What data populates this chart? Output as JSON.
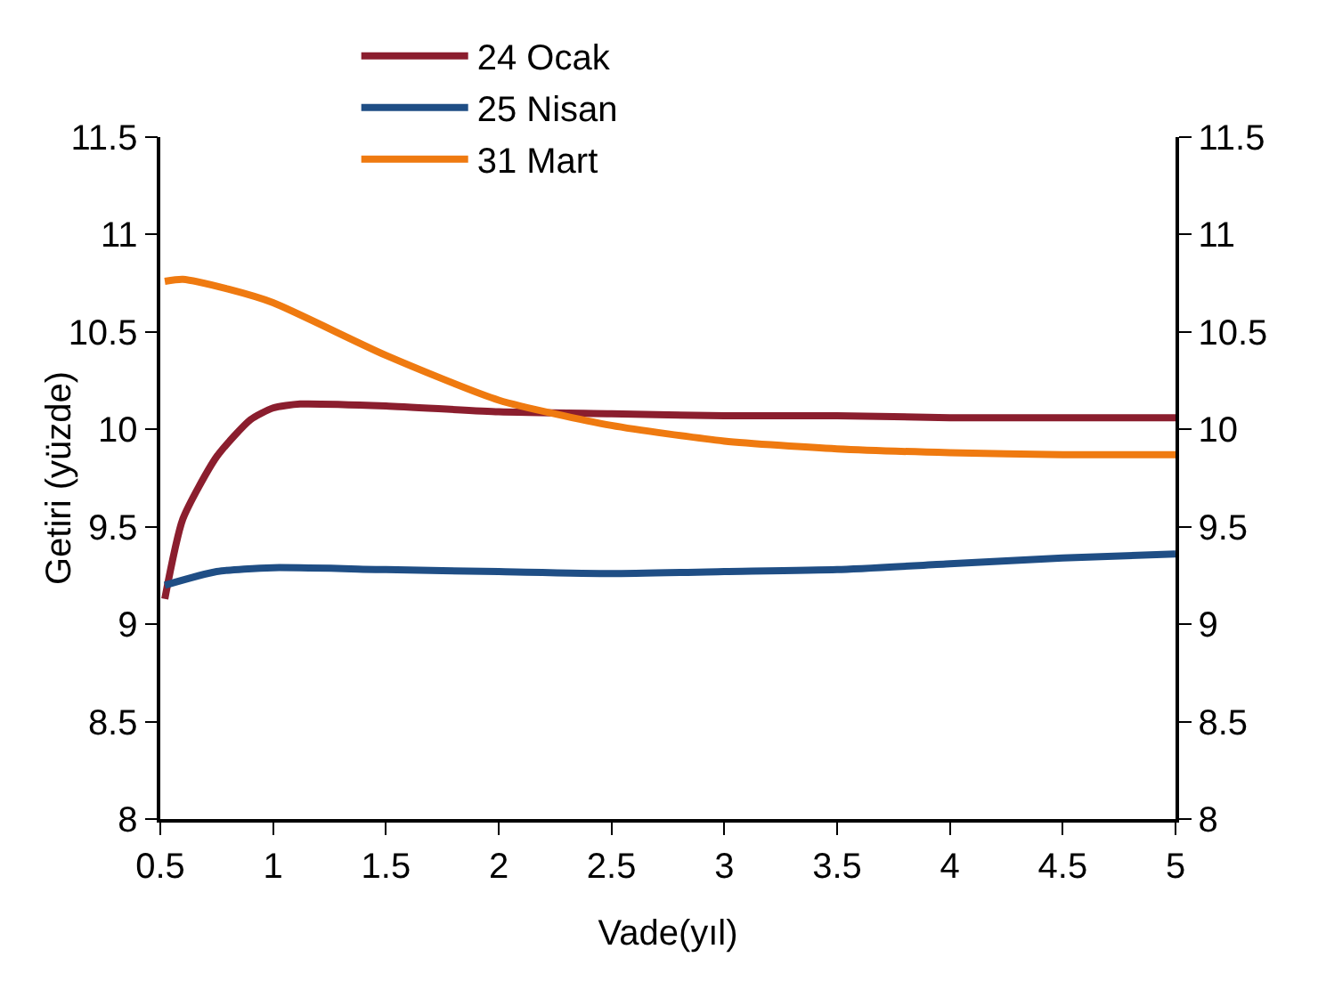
{
  "chart_data": {
    "type": "line",
    "xlabel": "Vade(yıl)",
    "ylabel": "Getiri (yüzde)",
    "series": [
      {
        "name": "24 Ocak",
        "color": "#8b1e2e",
        "x": [
          0.52,
          0.6,
          0.75,
          0.9,
          1,
          1.12,
          1.5,
          2,
          2.5,
          3,
          3.5,
          4,
          4.5,
          5
        ],
        "values": [
          9.13,
          9.54,
          9.86,
          10.05,
          10.11,
          10.13,
          10.12,
          10.09,
          10.08,
          10.07,
          10.07,
          10.06,
          10.06,
          10.06
        ]
      },
      {
        "name": "25 Nisan",
        "color": "#1f4e85",
        "x": [
          0.52,
          0.75,
          1,
          1.5,
          2,
          2.5,
          3,
          3.5,
          4,
          4.5,
          5
        ],
        "values": [
          9.2,
          9.27,
          9.29,
          9.28,
          9.27,
          9.26,
          9.27,
          9.28,
          9.31,
          9.34,
          9.36
        ]
      },
      {
        "name": "31 Mart",
        "color": "#ef7a10",
        "x": [
          0.52,
          0.6,
          0.8,
          1,
          1.5,
          2,
          2.5,
          3,
          3.5,
          4,
          4.5,
          5
        ],
        "values": [
          10.76,
          10.77,
          10.72,
          10.65,
          10.38,
          10.15,
          10.02,
          9.94,
          9.9,
          9.88,
          9.87,
          9.87
        ]
      }
    ],
    "xlim": [
      0.5,
      5
    ],
    "xticks": [
      0.5,
      1,
      1.5,
      2,
      2.5,
      3,
      3.5,
      4,
      4.5,
      5
    ],
    "ylim": [
      8,
      11.5
    ],
    "yticks": [
      8,
      8.5,
      9,
      9.5,
      10,
      10.5,
      11,
      11.5
    ],
    "y2lim": [
      8,
      11.5
    ],
    "y2ticks": [
      8,
      8.5,
      9,
      9.5,
      10,
      10.5,
      11,
      11.5
    ],
    "grid": false,
    "legend": "top",
    "marker": "none",
    "line_style": "solid"
  }
}
